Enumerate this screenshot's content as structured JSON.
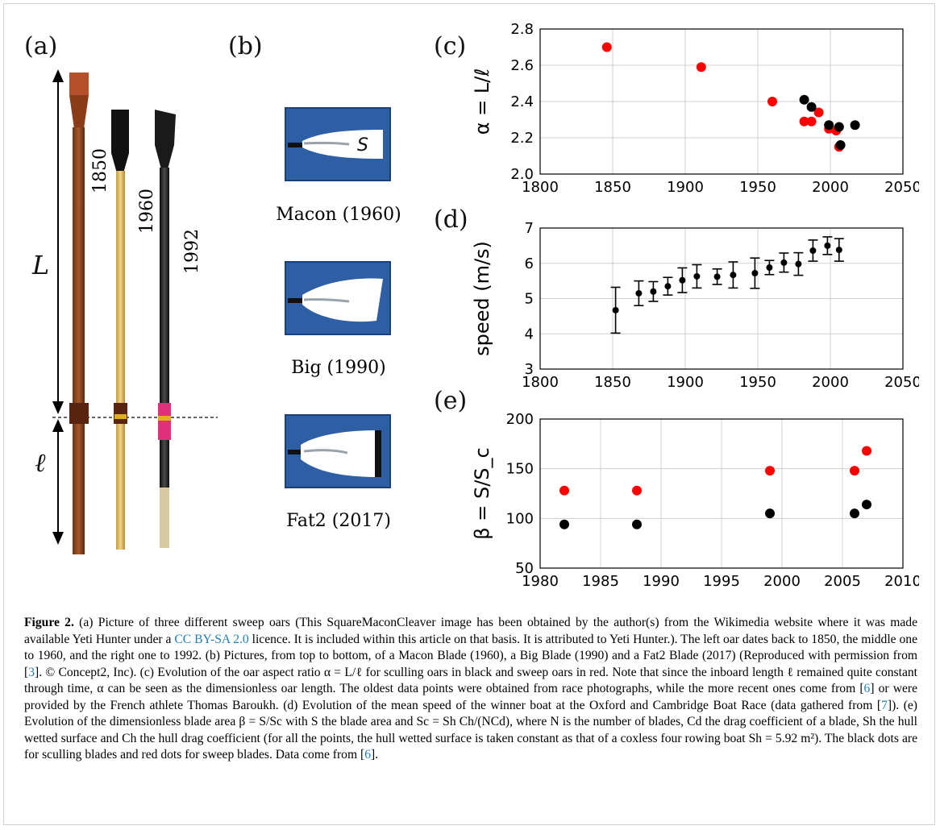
{
  "panels": {
    "a": "(a)",
    "b": "(b)",
    "c": "(c)",
    "d": "(d)",
    "e": "(e)"
  },
  "oars": {
    "years": [
      "1850",
      "1960",
      "1992"
    ],
    "L_label": "L",
    "ell_label": "ℓ"
  },
  "blades": [
    {
      "name": "Macon (1960)",
      "area_label": "S"
    },
    {
      "name": "Big (1990)"
    },
    {
      "name": "Fat2 (2017)"
    }
  ],
  "colors": {
    "sculling": "#000000",
    "sweep": "#ff0000",
    "blade_bg": "#2e5ea3",
    "link": "#1f7fb7"
  },
  "chart_data": [
    {
      "id": "c",
      "type": "scatter",
      "ylabel": "α = L/ℓ",
      "xlim": [
        1800,
        2050
      ],
      "ylim": [
        2.0,
        2.8
      ],
      "xticks": [
        1800,
        1850,
        1900,
        1950,
        2000,
        2050
      ],
      "yticks": [
        2.0,
        2.2,
        2.4,
        2.6,
        2.8
      ],
      "ytick_labels": [
        "2.0",
        "2.2",
        "2.4",
        "2.6",
        "2.8"
      ],
      "grid": true,
      "series": [
        {
          "color": "#ff0000",
          "points": [
            [
              1846,
              2.7
            ],
            [
              1911,
              2.59
            ],
            [
              1960,
              2.4
            ],
            [
              1982,
              2.29
            ],
            [
              1987,
              2.29
            ],
            [
              1992,
              2.34
            ],
            [
              1999,
              2.25
            ],
            [
              2004,
              2.24
            ],
            [
              2006,
              2.15
            ]
          ]
        },
        {
          "color": "#000000",
          "points": [
            [
              1982,
              2.41
            ],
            [
              1987,
              2.37
            ],
            [
              1999,
              2.27
            ],
            [
              2006,
              2.26
            ],
            [
              2007,
              2.16
            ],
            [
              2017,
              2.27
            ]
          ]
        }
      ]
    },
    {
      "id": "d",
      "type": "scatter",
      "ylabel": "speed (m/s)",
      "xlim": [
        1800,
        2050
      ],
      "ylim": [
        3,
        7
      ],
      "xticks": [
        1800,
        1850,
        1900,
        1950,
        2000,
        2050
      ],
      "yticks": [
        3,
        4,
        5,
        6,
        7
      ],
      "ytick_labels": [
        "3",
        "4",
        "5",
        "6",
        "7"
      ],
      "grid": true,
      "series": [
        {
          "color": "#000000",
          "points": [
            [
              1852,
              4.67,
              0.65
            ],
            [
              1868,
              5.15,
              0.35
            ],
            [
              1878,
              5.2,
              0.28
            ],
            [
              1888,
              5.35,
              0.25
            ],
            [
              1898,
              5.52,
              0.35
            ],
            [
              1908,
              5.63,
              0.33
            ],
            [
              1922,
              5.62,
              0.22
            ],
            [
              1933,
              5.67,
              0.37
            ],
            [
              1948,
              5.72,
              0.43
            ],
            [
              1958,
              5.88,
              0.2
            ],
            [
              1968,
              6.02,
              0.27
            ],
            [
              1978,
              5.98,
              0.32
            ],
            [
              1988,
              6.36,
              0.3
            ],
            [
              1998,
              6.5,
              0.25
            ],
            [
              2006,
              6.38,
              0.32
            ]
          ]
        }
      ]
    },
    {
      "id": "e",
      "type": "scatter",
      "ylabel": "β = S/S_c",
      "xlim": [
        1980,
        2010
      ],
      "ylim": [
        50,
        200
      ],
      "xticks": [
        1980,
        1985,
        1990,
        1995,
        2000,
        2005,
        2010
      ],
      "yticks": [
        50,
        100,
        150,
        200
      ],
      "ytick_labels": [
        "50",
        "100",
        "150",
        "200"
      ],
      "grid": true,
      "series": [
        {
          "color": "#ff0000",
          "points": [
            [
              1982,
              128
            ],
            [
              1988,
              128
            ],
            [
              1999,
              148
            ],
            [
              2006,
              148
            ],
            [
              2007,
              168
            ]
          ]
        },
        {
          "color": "#000000",
          "points": [
            [
              1982,
              94
            ],
            [
              1988,
              94
            ],
            [
              1999,
              105
            ],
            [
              2006,
              105
            ],
            [
              2007,
              114
            ]
          ]
        }
      ]
    }
  ],
  "caption": {
    "label": "Figure 2.",
    "text1": " (a) Picture of three different sweep oars (This SquareMaconCleaver image has been obtained by the author(s) from the Wikimedia website where it was made available Yeti Hunter under a ",
    "link1": "CC BY-SA 2.0",
    "text2": " licence. It is included within this article on that basis. It is attributed to Yeti Hunter.). The left oar dates back to 1850, the middle one to 1960, and the right one to 1992. (b) Pictures, from top to bottom, of a Macon Blade (1960), a Big Blade (1990) and a Fat2 Blade (2017) (Reproduced with permission from [",
    "ref3": "3",
    "text3": "]. © Concept2, Inc). (c) Evolution of the oar aspect ratio α = L/ℓ for sculling oars in black and sweep oars in red. Note that since the inboard length ℓ remained quite constant through time, α can be seen as the dimensionless oar length. The oldest data points were obtained from race photographs, while the more recent ones come from [",
    "ref6a": "6",
    "text4": "] or were provided by the French athlete Thomas Baroukh. (d) Evolution of the mean speed of the winner boat at the Oxford and Cambridge Boat Race (data gathered from [",
    "ref7": "7",
    "text5": "]). (e) Evolution of the dimensionless blade area β = S/Sc with S the blade area and Sc = Sh Ch/(NCd), where N is the number of blades, Cd the drag coefficient of a blade, Sh the hull wetted surface and Ch the hull drag coefficient (for all the points, the hull wetted surface is taken constant as that of a coxless four rowing boat Sh = 5.92 m²). The black dots are for sculling blades and red dots for sweep blades. Data come from [",
    "ref6b": "6",
    "text6": "]."
  }
}
